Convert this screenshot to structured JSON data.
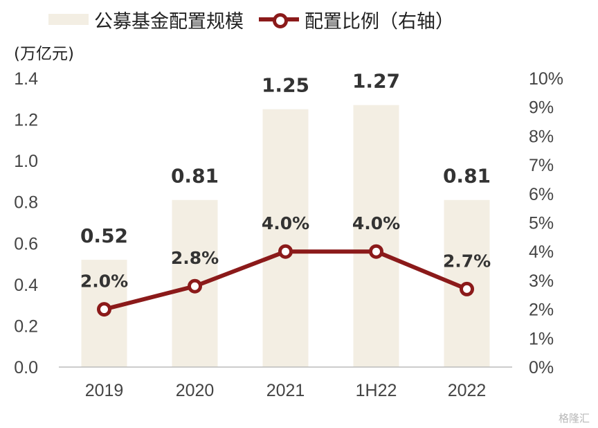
{
  "legend": {
    "bar_label": "公募基金配置规模",
    "line_label": "配置比例（右轴）"
  },
  "unit_label": "(万亿元)",
  "watermark": "格隆汇",
  "colors": {
    "bar": "#F3EEE3",
    "line": "#8B1A1A",
    "axis": "#BBBBBB",
    "text": "#444444",
    "label": "#333333"
  },
  "chart_data": {
    "type": "bar",
    "categories": [
      "2019",
      "2020",
      "2021",
      "1H22",
      "2022"
    ],
    "series": [
      {
        "name": "公募基金配置规模",
        "type": "bar",
        "axis": "left",
        "values": [
          0.52,
          0.81,
          1.25,
          1.27,
          0.81
        ],
        "labels": [
          "0.52",
          "0.81",
          "1.25",
          "1.27",
          "0.81"
        ]
      },
      {
        "name": "配置比例（右轴）",
        "type": "line",
        "axis": "right",
        "values": [
          2.0,
          2.8,
          4.0,
          4.0,
          2.7
        ],
        "labels": [
          "2.0%",
          "2.8%",
          "4.0%",
          "4.0%",
          "2.7%"
        ]
      }
    ],
    "y_left": {
      "min": 0,
      "max": 1.4,
      "step": 0.2,
      "ticks": [
        "0.0",
        "0.2",
        "0.4",
        "0.6",
        "0.8",
        "1.0",
        "1.2",
        "1.4"
      ]
    },
    "y_right": {
      "min": 0,
      "max": 10,
      "step": 1,
      "ticks": [
        "0%",
        "1%",
        "2%",
        "3%",
        "4%",
        "5%",
        "6%",
        "7%",
        "8%",
        "9%",
        "10%"
      ]
    },
    "legend_position": "top",
    "grid": false
  }
}
